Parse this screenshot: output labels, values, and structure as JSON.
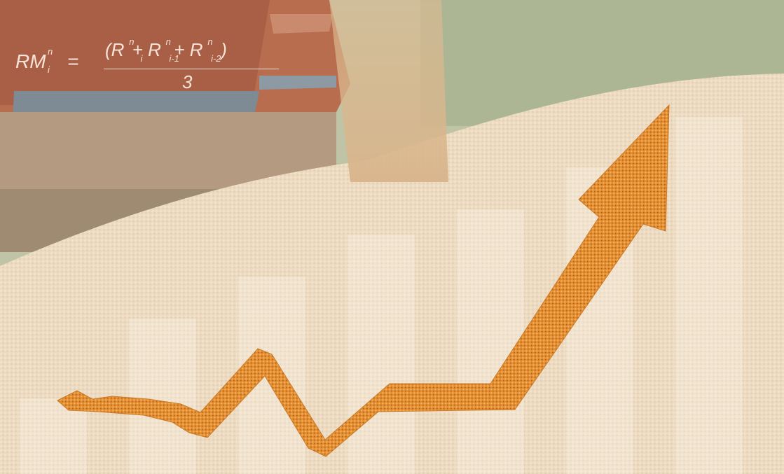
{
  "formula": {
    "lhs": "RM",
    "lhs_sup": "n",
    "lhs_sub": "i",
    "equals": "=",
    "open": "(",
    "close": ")",
    "plus": "+",
    "r": "R",
    "t1_sup": "n",
    "t1_sub": "i",
    "t2_sup": "n",
    "t2_sub": "i-1",
    "t3_sup": "n",
    "t3_sub": "i-2",
    "denominator": "3"
  },
  "background_bars": {
    "count": 7,
    "relative_heights": [
      0.18,
      0.37,
      0.47,
      0.57,
      0.63,
      0.73,
      0.85
    ]
  },
  "trend_arrow": {
    "direction": "up-right",
    "texture": "corn-kernels",
    "color": "#e08a2e"
  },
  "colors": {
    "grain": "#ead4b6",
    "sky_field": "#b8bd9c",
    "building_roof": "#a85b3e",
    "arrow": "#e08a2e"
  }
}
